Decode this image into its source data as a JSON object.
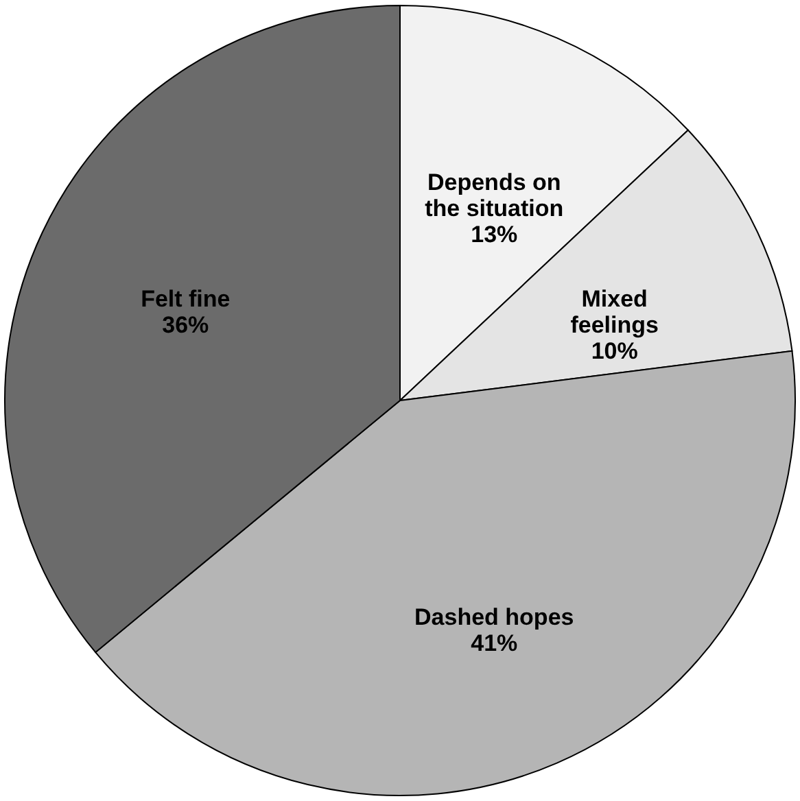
{
  "chart_data": {
    "type": "pie",
    "categories": [
      "Depends on the situation",
      "Mixed feelings",
      "Dashed hopes",
      "Felt fine"
    ],
    "values": [
      13,
      10,
      41,
      36
    ],
    "colors": [
      "#f2f2f2",
      "#e4e4e4",
      "#b5b5b5",
      "#6b6b6b"
    ],
    "value_labels": [
      "13%",
      "10%",
      "41%",
      "36%"
    ]
  }
}
